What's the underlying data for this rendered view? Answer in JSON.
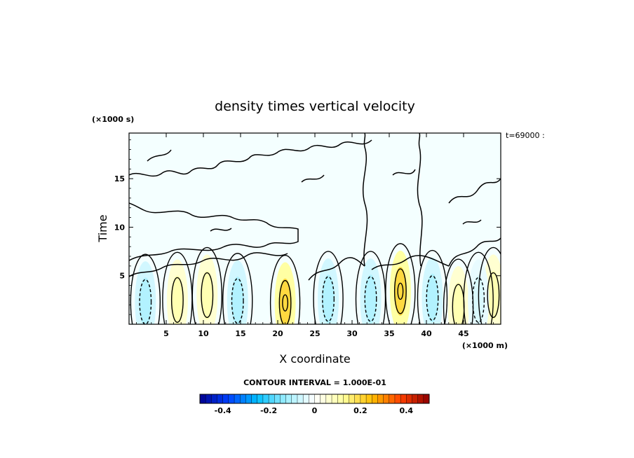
{
  "chart_data": {
    "type": "heatmap",
    "title": "density times vertical velocity",
    "xlabel": "X coordinate",
    "ylabel": "Time",
    "x_units": "(×1000 m)",
    "y_units": "(×1000 s)",
    "time_label": "t=69000 :",
    "x_range": [
      0,
      50
    ],
    "y_range": [
      0,
      19.7
    ],
    "x_ticks": [
      5,
      10,
      15,
      20,
      25,
      30,
      35,
      40,
      45
    ],
    "y_ticks": [
      5,
      10,
      15
    ],
    "contour_interval_text": "CONTOUR INTERVAL = 1.000E-01",
    "contour_interval": 0.1,
    "colorbar": {
      "min": -0.5,
      "max": 0.5,
      "levels": 40,
      "tick_values": [
        -0.4,
        -0.2,
        0,
        0.2,
        0.4
      ],
      "tick_labels": [
        "-0.4",
        "-0.2",
        "0",
        "0.2",
        "0.4"
      ],
      "colors": [
        "#00008f",
        "#0040ff",
        "#00bfff",
        "#9fefff",
        "#ffffff",
        "#ffff9f",
        "#ffbf00",
        "#ff4000",
        "#8f0000"
      ]
    },
    "features": [
      {
        "kind": "positive_cell",
        "x": 6.5,
        "y": 2.5,
        "peak": 0.1
      },
      {
        "kind": "positive_cell",
        "x": 10.5,
        "y": 3.0,
        "peak": 0.1
      },
      {
        "kind": "positive_cell",
        "x": 21.0,
        "y": 2.2,
        "peak": 0.2
      },
      {
        "kind": "positive_cell",
        "x": 36.5,
        "y": 3.4,
        "peak": 0.2
      },
      {
        "kind": "positive_cell",
        "x": 44.3,
        "y": 1.8,
        "peak": 0.1
      },
      {
        "kind": "positive_cell",
        "x": 49.0,
        "y": 3.0,
        "peak": 0.1
      },
      {
        "kind": "negative_cell",
        "x": 2.2,
        "y": 2.3,
        "peak": -0.1
      },
      {
        "kind": "negative_cell",
        "x": 14.6,
        "y": 2.4,
        "peak": -0.1
      },
      {
        "kind": "negative_cell",
        "x": 26.8,
        "y": 2.6,
        "peak": -0.1
      },
      {
        "kind": "negative_cell",
        "x": 32.5,
        "y": 2.6,
        "peak": -0.1
      },
      {
        "kind": "negative_cell",
        "x": 40.8,
        "y": 2.7,
        "peak": -0.1
      },
      {
        "kind": "negative_cell",
        "x": 47.0,
        "y": 2.5,
        "peak": -0.05
      }
    ]
  }
}
